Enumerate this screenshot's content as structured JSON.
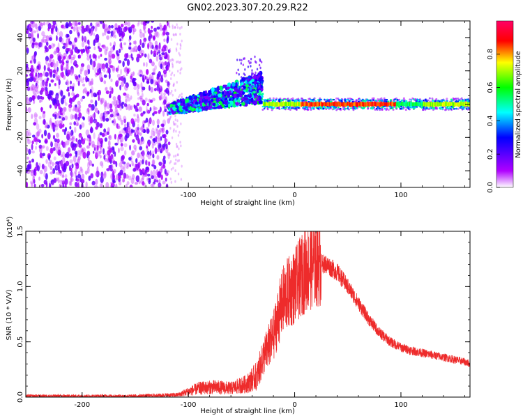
{
  "title": "GN02.2023.307.20.29.R22",
  "chart_data": [
    {
      "type": "heatmap",
      "xlabel": "Height of straight line (km)",
      "ylabel": "Frequency (Hz)",
      "xlim": [
        -253,
        165
      ],
      "ylim": [
        -50,
        50
      ],
      "xticks": [
        -200,
        -100,
        0,
        100
      ],
      "yticks": [
        -40,
        -20,
        0,
        20,
        40
      ],
      "colorbar": {
        "label": "Normalized spectral amplitude",
        "range": [
          0,
          1
        ],
        "ticks": [
          "0.0",
          "0.2",
          "0.4",
          "0.6",
          "0.8"
        ],
        "colors": [
          "#ffffff",
          "#b000ff",
          "#0000ff",
          "#00ffff",
          "#00ff00",
          "#ffff00",
          "#ff0000",
          "#ff0066"
        ]
      },
      "regions": [
        {
          "x": [
            -253,
            -118
          ],
          "freq_spread": 50,
          "amplitude": 0.15,
          "note": "scattered noise"
        },
        {
          "x": [
            -118,
            -30
          ],
          "freq_center_start": -3,
          "freq_center_end": 10,
          "amplitude": 0.45
        },
        {
          "x": [
            -30,
            165
          ],
          "freq_center": 0,
          "amplitude": 0.9
        }
      ]
    },
    {
      "type": "line",
      "xlabel": "Height of straight line (km)",
      "ylabel": "SNR (10 * V/V)",
      "y_multiplier": "(x10⁴)",
      "xlim": [
        -253,
        165
      ],
      "ylim": [
        0,
        1.5
      ],
      "xticks": [
        -200,
        -100,
        0,
        100
      ],
      "yticks": [
        "0.0",
        "0.5",
        "1.0",
        "1.5"
      ],
      "color": "#ee2b2b",
      "series": [
        {
          "x": [
            -253,
            -200,
            -150,
            -110,
            -100,
            -90,
            -75,
            -60,
            -45,
            -35,
            -30,
            -25,
            -20,
            -15,
            -10,
            -5,
            0,
            10,
            20,
            30,
            40,
            50,
            60,
            70,
            80,
            90,
            100,
            110,
            120,
            130,
            140,
            150,
            160,
            165
          ],
          "values": [
            0.01,
            0.01,
            0.01,
            0.02,
            0.05,
            0.08,
            0.09,
            0.08,
            0.12,
            0.2,
            0.35,
            0.45,
            0.55,
            0.75,
            0.9,
            0.95,
            1.0,
            1.15,
            1.22,
            1.2,
            1.13,
            1.0,
            0.85,
            0.7,
            0.58,
            0.5,
            0.45,
            0.42,
            0.4,
            0.38,
            0.36,
            0.34,
            0.32,
            0.3
          ]
        }
      ]
    }
  ]
}
